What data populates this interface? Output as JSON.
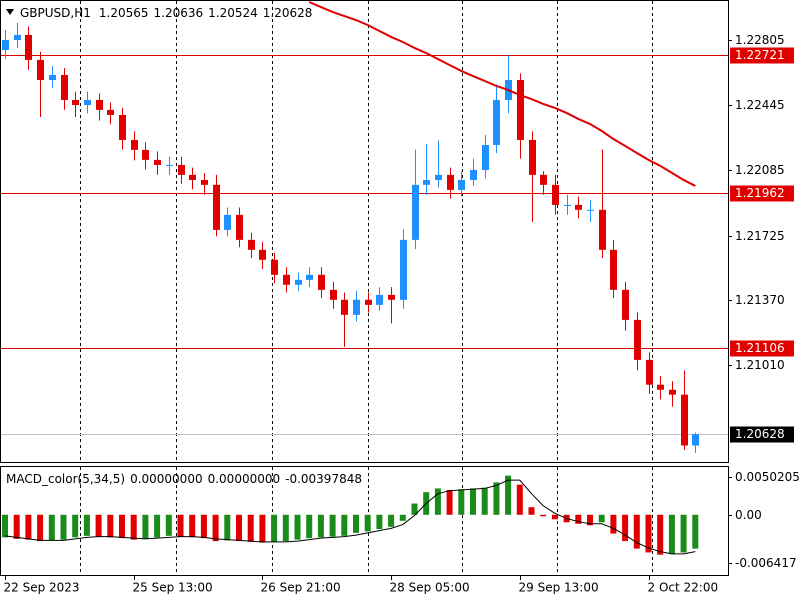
{
  "chart_data": {
    "type": "candlestick",
    "symbol": "GBPUSD,H1",
    "categories": [
      "22 Sep 2023",
      null,
      null,
      null,
      null,
      null,
      null,
      null,
      null,
      null,
      null,
      "25 Sep 13:00",
      null,
      null,
      null,
      null,
      null,
      null,
      null,
      null,
      null,
      null,
      "26 Sep 21:00",
      null,
      null,
      null,
      null,
      null,
      null,
      null,
      null,
      null,
      null,
      "28 Sep 05:00",
      null,
      null,
      null,
      null,
      null,
      null,
      null,
      null,
      null,
      null,
      "29 Sep 13:00",
      null,
      null,
      null,
      null,
      null,
      null,
      null,
      null,
      null,
      null,
      "2 Oct 22:00",
      null,
      null,
      null,
      null
    ],
    "open": [
      1.2275,
      1.22805,
      1.22833,
      1.22695,
      1.22584,
      1.22612,
      1.22474,
      1.22446,
      1.22474,
      1.22419,
      1.22391,
      1.22253,
      1.22198,
      1.22143,
      1.22115,
      1.22115,
      1.2206,
      1.22032,
      1.22005,
      1.21756,
      1.21839,
      1.21701,
      1.21646,
      1.21591,
      1.21508,
      1.21453,
      1.2148,
      1.21508,
      1.21425,
      1.2137,
      1.21287,
      1.2137,
      1.21342,
      1.21397,
      1.2137,
      1.21701,
      1.22005,
      1.22032,
      1.2206,
      1.21977,
      1.22032,
      1.22087,
      1.22225,
      1.22474,
      1.22584,
      1.22253,
      1.2206,
      1.22005,
      1.21894,
      1.21894,
      1.21867,
      1.21867,
      1.21646,
      1.21425,
      1.21259,
      1.21038,
      1.20901,
      1.20873,
      1.20846,
      1.20565
    ],
    "high": [
      1.2286,
      1.229,
      1.2288,
      1.2274,
      1.2266,
      1.2265,
      1.2252,
      1.2252,
      1.2251,
      1.2246,
      1.2243,
      1.223,
      1.2224,
      1.2219,
      1.2216,
      1.2216,
      1.221,
      1.2207,
      1.2206,
      1.2188,
      1.2188,
      1.2174,
      1.2169,
      1.2163,
      1.2155,
      1.2152,
      1.2155,
      1.2155,
      1.2147,
      1.2141,
      1.2142,
      1.2141,
      1.2144,
      1.2144,
      1.2176,
      1.222,
      1.2223,
      1.2225,
      1.221,
      1.2208,
      1.2215,
      1.2228,
      1.2256,
      1.2272,
      1.2262,
      1.223,
      1.2208,
      1.2206,
      1.2195,
      1.2194,
      1.2192,
      1.222,
      1.217,
      1.2147,
      1.213,
      1.2108,
      1.2095,
      1.2092,
      1.2098,
      1.20636
    ],
    "low": [
      1.227,
      1.2276,
      1.2264,
      1.2238,
      1.2254,
      1.2242,
      1.2238,
      1.224,
      1.2236,
      1.2234,
      1.222,
      1.2214,
      1.2209,
      1.2206,
      1.2206,
      1.2201,
      1.2198,
      1.2195,
      1.2172,
      1.2172,
      1.2166,
      1.216,
      1.2154,
      1.2146,
      1.2141,
      1.2142,
      1.2144,
      1.2138,
      1.2132,
      1.2111,
      1.2125,
      1.213,
      1.2131,
      1.2124,
      1.2132,
      1.2165,
      1.2195,
      1.2199,
      1.2193,
      1.2194,
      1.22,
      1.2204,
      1.2218,
      1.224,
      1.2215,
      1.218,
      1.2195,
      1.2184,
      1.2184,
      1.2182,
      1.218,
      1.216,
      1.2138,
      1.212,
      1.2098,
      1.2085,
      1.2082,
      1.2078,
      1.2054,
      1.20524
    ],
    "close": [
      1.22805,
      1.22833,
      1.22695,
      1.22584,
      1.22612,
      1.22474,
      1.22446,
      1.22474,
      1.22419,
      1.22391,
      1.22253,
      1.22198,
      1.22143,
      1.22115,
      1.22115,
      1.2206,
      1.22032,
      1.22005,
      1.21756,
      1.21839,
      1.21701,
      1.21646,
      1.21591,
      1.21508,
      1.21453,
      1.2148,
      1.21508,
      1.21425,
      1.2137,
      1.21287,
      1.2137,
      1.21342,
      1.21397,
      1.2137,
      1.21701,
      1.22005,
      1.22032,
      1.2206,
      1.21977,
      1.22032,
      1.22087,
      1.22225,
      1.22474,
      1.22584,
      1.22253,
      1.2206,
      1.22005,
      1.21894,
      1.21894,
      1.21867,
      1.21867,
      1.21646,
      1.21425,
      1.21259,
      1.21038,
      1.20901,
      1.20873,
      1.20846,
      1.20565,
      1.20628
    ],
    "ma": [
      null,
      null,
      null,
      null,
      null,
      null,
      null,
      null,
      null,
      null,
      null,
      null,
      null,
      null,
      null,
      null,
      null,
      null,
      null,
      null,
      null,
      null,
      null,
      null,
      null,
      null,
      1.23015,
      1.22987,
      1.2296,
      1.22937,
      1.22915,
      1.22888,
      1.22855,
      1.22822,
      1.22794,
      1.22761,
      1.22733,
      1.227,
      1.22667,
      1.22634,
      1.22606,
      1.22579,
      1.22551,
      1.22529,
      1.22501,
      1.22479,
      1.22452,
      1.2243,
      1.22402,
      1.22369,
      1.22341,
      1.22303,
      1.22258,
      1.2222,
      1.22181,
      1.22143,
      1.2211,
      1.22071,
      1.22032,
      1.21999
    ],
    "levels": [
      1.22721,
      1.21962,
      1.21106
    ],
    "ylim": [
      1.20474,
      1.23026
    ],
    "yticks": [
      1.22805,
      1.22445,
      1.22085,
      1.21725,
      {
        "value": 1.2137,
        "label": "1.21370"
      },
      {
        "value": 1.2101,
        "label": "1.21010"
      }
    ],
    "bull_color": "#1e90ff",
    "bear_color": "#e00000",
    "ma_color": "#e00000",
    "level_color": "#e00000",
    "macd": {
      "title": "MACD_color(5,34,5)",
      "readings": [
        "0.00000000",
        "0.00000000",
        "-0.00397848"
      ],
      "hist": [
        -0.003,
        -0.0032,
        -0.0033,
        -0.0035,
        -0.0034,
        -0.0033,
        -0.003,
        -0.0028,
        -0.0029,
        -0.003,
        -0.0031,
        -0.0033,
        -0.0032,
        -0.003,
        -0.0028,
        -0.0029,
        -0.003,
        -0.0031,
        -0.0035,
        -0.0034,
        -0.0035,
        -0.0036,
        -0.0037,
        -0.0036,
        -0.0035,
        -0.0033,
        -0.0031,
        -0.003,
        -0.0029,
        -0.0028,
        -0.0024,
        -0.0022,
        -0.0019,
        -0.0016,
        -0.0008,
        0.0015,
        0.003,
        0.0035,
        0.0033,
        0.0034,
        0.0035,
        0.0036,
        0.0043,
        0.0052,
        0.004,
        0.001,
        -0.0002,
        -0.0006,
        -0.001,
        -0.0012,
        -0.0014,
        -0.001,
        -0.0025,
        -0.0035,
        -0.0045,
        -0.005,
        -0.0053,
        -0.0052,
        -0.005,
        -0.0045
      ],
      "signal": [
        -0.0028,
        -0.003,
        -0.0032,
        -0.0034,
        -0.0034,
        -0.0034,
        -0.0032,
        -0.003,
        -0.0029,
        -0.0029,
        -0.003,
        -0.0031,
        -0.0032,
        -0.0031,
        -0.003,
        -0.0029,
        -0.0029,
        -0.003,
        -0.0032,
        -0.0033,
        -0.0034,
        -0.0035,
        -0.0036,
        -0.0036,
        -0.0036,
        -0.0035,
        -0.0033,
        -0.0031,
        -0.003,
        -0.0029,
        -0.0027,
        -0.0024,
        -0.0021,
        -0.0018,
        -0.0013,
        -0.0001,
        0.0015,
        0.0028,
        0.0032,
        0.0033,
        0.0034,
        0.0035,
        0.0039,
        0.0046,
        0.0046,
        0.0028,
        0.0012,
        0.0002,
        -0.0005,
        -0.0009,
        -0.0012,
        -0.0012,
        -0.0018,
        -0.0027,
        -0.0037,
        -0.0044,
        -0.0049,
        -0.0052,
        -0.0052,
        -0.0049
      ],
      "ylim": [
        -0.008,
        0.00648
      ],
      "yticks": [
        0.0050205,
        {
          "value": 0,
          "label": "0.00"
        },
        -0.006417
      ],
      "up_color": "#1a8c1a",
      "down_color": "#e00000",
      "signal_color": "#000000"
    }
  }
}
